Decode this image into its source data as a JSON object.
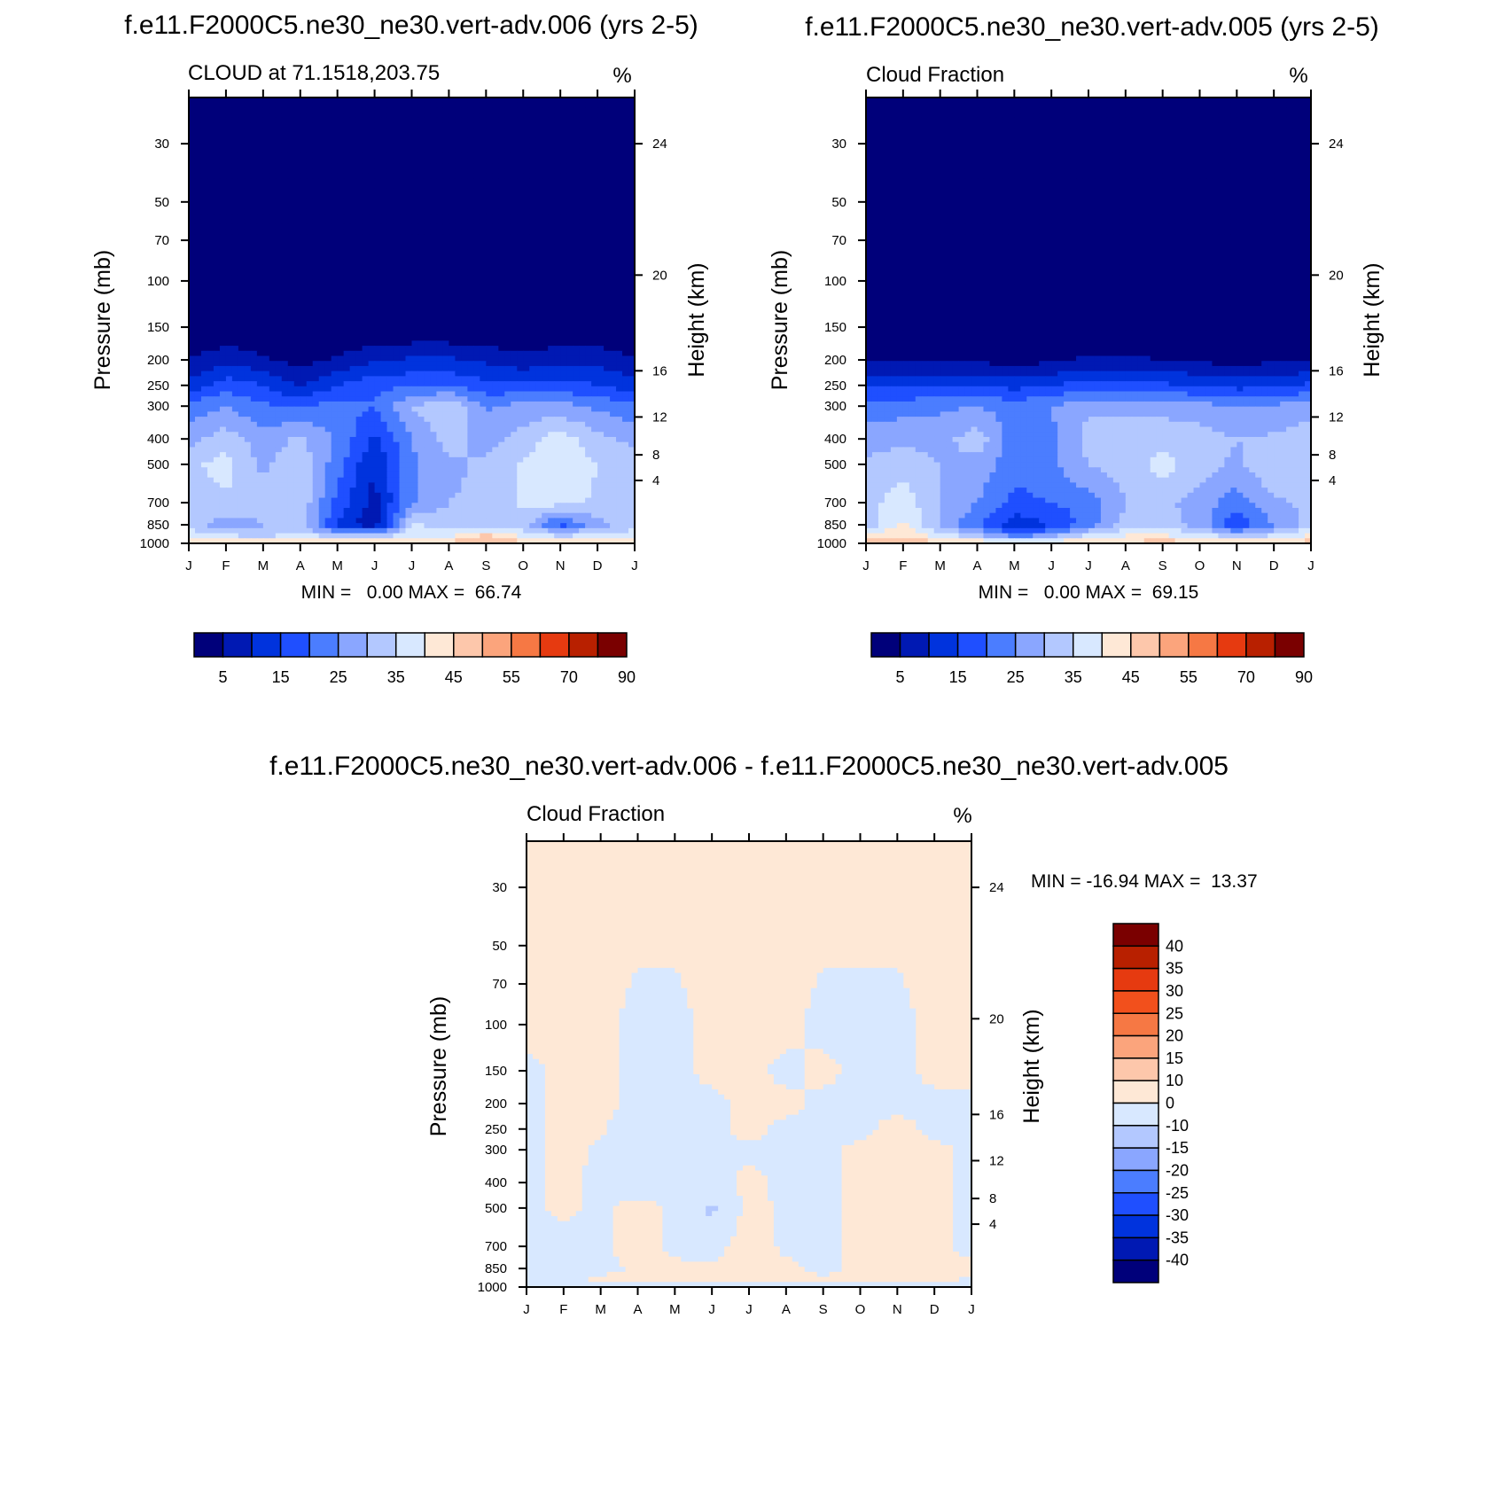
{
  "colors": {
    "palette": [
      "#00007a",
      "#0019b3",
      "#0033dd",
      "#1f4fff",
      "#4b7dff",
      "#8aa6ff",
      "#b3c8ff",
      "#d8e8ff",
      "#fee8d6",
      "#fdc7ab",
      "#fba47c",
      "#f67844",
      "#e63a10",
      "#b82000",
      "#7a0000"
    ],
    "frame": "#000000"
  },
  "chart_data": [
    {
      "id": "panel-006",
      "type": "heatmap",
      "title": "f.e11.F2000C5.ne30_ne30.vert-adv.006 (yrs 2-5)",
      "left_label": "CLOUD at 71.1518,203.75",
      "units": "%",
      "xlabel": "",
      "ylabel": "Pressure (mb)",
      "y2label": "Height (km)",
      "x_tick_labels": [
        "J",
        "F",
        "M",
        "A",
        "M",
        "J",
        "J",
        "A",
        "S",
        "O",
        "N",
        "D",
        "J"
      ],
      "y_ticks": [
        30,
        50,
        70,
        100,
        150,
        200,
        250,
        300,
        400,
        500,
        700,
        850,
        1000
      ],
      "y2_ticks": [
        24,
        20,
        16,
        12,
        8,
        4
      ],
      "ylim": [
        1000,
        20
      ],
      "stats_text": "MIN =   0.00 MAX =  66.74",
      "levels": [
        0,
        5,
        10,
        15,
        20,
        25,
        30,
        35,
        40,
        45,
        50,
        55,
        60,
        70,
        80,
        90
      ],
      "colorbar_labels": [
        "5",
        "15",
        "25",
        "35",
        "45",
        "55",
        "70",
        "90"
      ],
      "pressure_levels": [
        20,
        150,
        200,
        250,
        300,
        400,
        500,
        700,
        850,
        925,
        1000
      ],
      "values": [
        [
          0,
          0,
          0,
          0,
          0,
          0,
          0,
          0,
          0,
          0,
          0,
          0,
          0
        ],
        [
          0,
          0,
          0,
          0,
          0,
          0,
          0,
          0,
          0,
          0,
          0,
          0,
          0
        ],
        [
          5,
          9,
          6,
          3,
          6,
          9,
          11,
          11,
          9,
          7,
          9,
          9,
          5
        ],
        [
          12,
          18,
          15,
          9,
          15,
          19,
          19,
          20,
          17,
          16,
          17,
          15,
          12
        ],
        [
          22,
          25,
          21,
          20,
          22,
          20,
          30,
          35,
          24,
          27,
          27,
          24,
          22
        ],
        [
          28,
          33,
          27,
          31,
          24,
          14,
          25,
          32,
          28,
          32,
          38,
          32,
          28
        ],
        [
          34,
          37,
          29,
          34,
          22,
          10,
          24,
          29,
          31,
          36,
          39,
          35,
          34
        ],
        [
          31,
          34,
          32,
          34,
          18,
          8,
          24,
          30,
          31,
          36,
          37,
          34,
          31
        ],
        [
          33,
          27,
          30,
          32,
          14,
          6,
          36,
          33,
          33,
          32,
          18,
          28,
          33
        ],
        [
          37,
          34,
          32,
          36,
          30,
          30,
          37,
          38,
          45,
          38,
          32,
          36,
          37
        ],
        [
          47,
          46,
          45,
          45,
          45,
          45,
          45,
          47,
          52,
          47,
          45,
          45,
          47
        ]
      ]
    },
    {
      "id": "panel-005",
      "type": "heatmap",
      "title": "f.e11.F2000C5.ne30_ne30.vert-adv.005 (yrs 2-5)",
      "left_label": "Cloud Fraction",
      "units": "%",
      "xlabel": "",
      "ylabel": "Pressure (mb)",
      "y2label": "Height (km)",
      "x_tick_labels": [
        "J",
        "F",
        "M",
        "A",
        "M",
        "J",
        "J",
        "A",
        "S",
        "O",
        "N",
        "D",
        "J"
      ],
      "y_ticks": [
        30,
        50,
        70,
        100,
        150,
        200,
        250,
        300,
        400,
        500,
        700,
        850,
        1000
      ],
      "y2_ticks": [
        24,
        20,
        16,
        12,
        8,
        4
      ],
      "ylim": [
        1000,
        20
      ],
      "stats_text": "MIN =   0.00 MAX =  69.15",
      "levels": [
        0,
        5,
        10,
        15,
        20,
        25,
        30,
        35,
        40,
        45,
        50,
        55,
        60,
        70,
        80,
        90
      ],
      "colorbar_labels": [
        "5",
        "15",
        "25",
        "35",
        "45",
        "55",
        "70",
        "90"
      ],
      "pressure_levels": [
        20,
        150,
        200,
        250,
        300,
        400,
        500,
        700,
        850,
        925,
        1000
      ],
      "values": [
        [
          0,
          0,
          0,
          0,
          0,
          0,
          0,
          0,
          0,
          0,
          0,
          0,
          0
        ],
        [
          0,
          0,
          0,
          0,
          0,
          0,
          0,
          0,
          0,
          0,
          0,
          0,
          0
        ],
        [
          4,
          4,
          4,
          4,
          3,
          4,
          6,
          6,
          5,
          4,
          3,
          4,
          5
        ],
        [
          14,
          14,
          15,
          15,
          13,
          15,
          17,
          17,
          16,
          15,
          13,
          14,
          16
        ],
        [
          22,
          23,
          24,
          25,
          23,
          25,
          29,
          29,
          28,
          27,
          25,
          26,
          28
        ],
        [
          28,
          29,
          28,
          33,
          22,
          24,
          32,
          33,
          34,
          33,
          30,
          31,
          33
        ],
        [
          31,
          33,
          30,
          28,
          22,
          24,
          30,
          32,
          37,
          32,
          29,
          34,
          31
        ],
        [
          33,
          38,
          30,
          25,
          18,
          20,
          22,
          30,
          31,
          28,
          22,
          29,
          31
        ],
        [
          32,
          41,
          30,
          20,
          12,
          15,
          22,
          32,
          33,
          28,
          15,
          25,
          32
        ],
        [
          40,
          44,
          36,
          30,
          20,
          25,
          36,
          39,
          39,
          37,
          30,
          34,
          40
        ],
        [
          48,
          52,
          46,
          45,
          42,
          44,
          46,
          47,
          48,
          47,
          46,
          46,
          48
        ]
      ]
    },
    {
      "id": "panel-diff",
      "type": "heatmap",
      "title": "f.e11.F2000C5.ne30_ne30.vert-adv.006 - f.e11.F2000C5.ne30_ne30.vert-adv.005",
      "left_label": "Cloud Fraction",
      "units": "%",
      "xlabel": "",
      "ylabel": "Pressure (mb)",
      "y2label": "Height (km)",
      "x_tick_labels": [
        "J",
        "F",
        "M",
        "A",
        "M",
        "J",
        "J",
        "A",
        "S",
        "O",
        "N",
        "D",
        "J"
      ],
      "y_ticks": [
        30,
        50,
        70,
        100,
        150,
        200,
        250,
        300,
        400,
        500,
        700,
        850,
        1000
      ],
      "y2_ticks": [
        24,
        20,
        16,
        12,
        8,
        4
      ],
      "ylim": [
        1000,
        20
      ],
      "stats_text": "MIN = -16.94 MAX =  13.37",
      "levels": [
        -45,
        -40,
        -35,
        -30,
        -25,
        -20,
        -15,
        -10,
        0,
        10,
        15,
        20,
        25,
        30,
        35,
        40,
        45
      ],
      "colorbar_labels": [
        "40",
        "35",
        "30",
        "25",
        "20",
        "15",
        "10",
        "0",
        "-10",
        "-15",
        "-20",
        "-25",
        "-30",
        "-35",
        "-40"
      ],
      "pressure_levels": [
        20,
        100,
        150,
        200,
        250,
        300,
        400,
        500,
        700,
        850,
        950,
        1000
      ],
      "values": [
        [
          2,
          2,
          2,
          2,
          2,
          2,
          2,
          2,
          2,
          2,
          2,
          2,
          2
        ],
        [
          2,
          2,
          2,
          -2,
          -2,
          2,
          2,
          2,
          -2,
          -2,
          -2,
          2,
          2
        ],
        [
          -2,
          2,
          2,
          -2,
          -2,
          2,
          2,
          -2,
          2,
          -2,
          -2,
          2,
          2
        ],
        [
          -2,
          2,
          2,
          -2,
          -2,
          -2,
          2,
          2,
          -2,
          -2,
          -2,
          -2,
          -2
        ],
        [
          -2,
          2,
          1,
          -5,
          -2,
          -2,
          2,
          -2,
          -2,
          -2,
          3,
          -2,
          -2
        ],
        [
          -2,
          2,
          -1,
          -11,
          -3,
          -2,
          -1,
          -2,
          -2,
          2,
          6,
          2,
          -2
        ],
        [
          -2,
          2,
          -2,
          -4,
          -3,
          -3,
          2,
          -2,
          -2,
          2,
          6,
          2,
          -2
        ],
        [
          -2,
          2,
          -2,
          3,
          -2,
          -12,
          3,
          -2,
          -2,
          2,
          6,
          2,
          -2
        ],
        [
          -3,
          -4,
          -2,
          4,
          -2,
          -4,
          5,
          -2,
          -2,
          2,
          6,
          2,
          -2
        ],
        [
          -2,
          -9,
          -2,
          1,
          2,
          2,
          5,
          2,
          -2,
          2,
          2,
          2,
          2
        ],
        [
          -2,
          -2,
          2,
          2,
          2,
          2,
          2,
          2,
          2,
          2,
          2,
          2,
          -2
        ],
        [
          -2,
          -2,
          -2,
          -2,
          -2,
          -2,
          -2,
          -2,
          -2,
          -2,
          -2,
          -2,
          -2
        ]
      ]
    }
  ]
}
